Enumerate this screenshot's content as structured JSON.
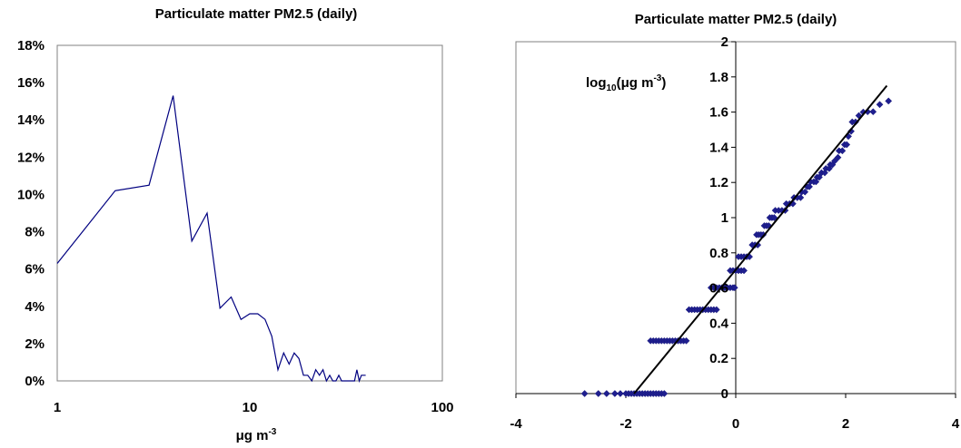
{
  "chart_data": [
    {
      "type": "line",
      "title": "Particulate matter PM2.5 (daily)",
      "xlabel": "μg m",
      "xlabel_sup": "-3",
      "ylabel": "",
      "x_scale": "log",
      "xlim": [
        1,
        100
      ],
      "ylim": [
        0,
        18
      ],
      "x_ticks": [
        1,
        10,
        100
      ],
      "x_tick_labels": [
        "1",
        "10",
        "100"
      ],
      "y_ticks": [
        0,
        2,
        4,
        6,
        8,
        10,
        12,
        14,
        16,
        18
      ],
      "y_tick_labels": [
        "0%",
        "2%",
        "4%",
        "6%",
        "8%",
        "10%",
        "12%",
        "14%",
        "16%",
        "18%"
      ],
      "grid": false,
      "series": [
        {
          "color": "#000080",
          "x": [
            1,
            2,
            3,
            4,
            5,
            6,
            7,
            8,
            9,
            10,
            11,
            12,
            13,
            14,
            15,
            16,
            17,
            18,
            19,
            20,
            21,
            22,
            23,
            24,
            25,
            26,
            27,
            28,
            29,
            30,
            31,
            32,
            33,
            34,
            35,
            36,
            37,
            38,
            39,
            40
          ],
          "values": [
            6.3,
            10.2,
            10.5,
            15.3,
            7.5,
            9.0,
            3.9,
            4.5,
            3.3,
            3.6,
            3.6,
            3.3,
            2.4,
            0.6,
            1.5,
            0.9,
            1.5,
            1.2,
            0.3,
            0.3,
            0.0,
            0.6,
            0.3,
            0.6,
            0.0,
            0.3,
            0.0,
            0.0,
            0.3,
            0.0,
            0.0,
            0.0,
            0.0,
            0.0,
            0.0,
            0.6,
            0.0,
            0.3,
            0.3,
            0.3
          ]
        }
      ]
    },
    {
      "type": "scatter",
      "title": "Particulate matter PM2.5 (daily)",
      "ylabel": "log",
      "ylabel_sub": "10",
      "ylabel_mid": "(μg m",
      "ylabel_sup": "-3",
      "ylabel_end": ")",
      "xlabel": "",
      "xlim": [
        -4,
        4
      ],
      "ylim": [
        0,
        2
      ],
      "x_ticks": [
        -4,
        -2,
        0,
        2,
        4
      ],
      "x_tick_labels": [
        "-4",
        "-2",
        "0",
        "2",
        "4"
      ],
      "y_ticks": [
        0,
        0.2,
        0.4,
        0.6,
        0.8,
        1,
        1.2,
        1.4,
        1.6,
        1.8,
        2
      ],
      "y_tick_labels": [
        "0",
        "0.2",
        "0.4",
        "0.6",
        "0.8",
        "1",
        "1.2",
        "1.4",
        "1.6",
        "1.8",
        "2"
      ],
      "grid": false,
      "marker_color": "#1F1F8F",
      "points": [
        [
          -2.75,
          0
        ],
        [
          -2.5,
          0
        ],
        [
          -2.35,
          0
        ],
        [
          -2.2,
          0
        ],
        [
          -2.1,
          0
        ],
        [
          -2.0,
          0
        ],
        [
          -1.95,
          0
        ],
        [
          -1.9,
          0
        ],
        [
          -1.85,
          0
        ],
        [
          -1.8,
          0
        ],
        [
          -1.75,
          0
        ],
        [
          -1.7,
          0
        ],
        [
          -1.65,
          0
        ],
        [
          -1.6,
          0
        ],
        [
          -1.55,
          0
        ],
        [
          -1.5,
          0
        ],
        [
          -1.45,
          0
        ],
        [
          -1.4,
          0
        ],
        [
          -1.35,
          0
        ],
        [
          -1.3,
          0
        ],
        [
          -1.55,
          0.3
        ],
        [
          -1.5,
          0.3
        ],
        [
          -1.45,
          0.3
        ],
        [
          -1.4,
          0.3
        ],
        [
          -1.35,
          0.3
        ],
        [
          -1.3,
          0.3
        ],
        [
          -1.25,
          0.3
        ],
        [
          -1.2,
          0.3
        ],
        [
          -1.15,
          0.3
        ],
        [
          -1.1,
          0.3
        ],
        [
          -1.05,
          0.3
        ],
        [
          -1.0,
          0.3
        ],
        [
          -0.95,
          0.3
        ],
        [
          -0.9,
          0.3
        ],
        [
          -0.85,
          0.477
        ],
        [
          -0.8,
          0.477
        ],
        [
          -0.75,
          0.477
        ],
        [
          -0.7,
          0.477
        ],
        [
          -0.65,
          0.477
        ],
        [
          -0.6,
          0.477
        ],
        [
          -0.55,
          0.477
        ],
        [
          -0.5,
          0.477
        ],
        [
          -0.45,
          0.477
        ],
        [
          -0.4,
          0.477
        ],
        [
          -0.35,
          0.477
        ],
        [
          -0.45,
          0.602
        ],
        [
          -0.4,
          0.602
        ],
        [
          -0.35,
          0.602
        ],
        [
          -0.3,
          0.602
        ],
        [
          -0.25,
          0.602
        ],
        [
          -0.2,
          0.602
        ],
        [
          -0.15,
          0.602
        ],
        [
          -0.1,
          0.602
        ],
        [
          -0.05,
          0.602
        ],
        [
          -0.02,
          0.602
        ],
        [
          -0.1,
          0.699
        ],
        [
          -0.05,
          0.699
        ],
        [
          0.0,
          0.699
        ],
        [
          0.05,
          0.699
        ],
        [
          0.1,
          0.699
        ],
        [
          0.15,
          0.699
        ],
        [
          0.05,
          0.778
        ],
        [
          0.1,
          0.778
        ],
        [
          0.15,
          0.778
        ],
        [
          0.2,
          0.778
        ],
        [
          0.25,
          0.778
        ],
        [
          0.3,
          0.845
        ],
        [
          0.35,
          0.845
        ],
        [
          0.4,
          0.845
        ],
        [
          0.38,
          0.903
        ],
        [
          0.42,
          0.903
        ],
        [
          0.46,
          0.903
        ],
        [
          0.5,
          0.903
        ],
        [
          0.52,
          0.954
        ],
        [
          0.56,
          0.954
        ],
        [
          0.6,
          0.954
        ],
        [
          0.62,
          1.0
        ],
        [
          0.66,
          1.0
        ],
        [
          0.7,
          1.0
        ],
        [
          0.72,
          1.041
        ],
        [
          0.78,
          1.041
        ],
        [
          0.84,
          1.041
        ],
        [
          0.9,
          1.041
        ],
        [
          0.92,
          1.079
        ],
        [
          0.98,
          1.079
        ],
        [
          1.04,
          1.079
        ],
        [
          1.06,
          1.114
        ],
        [
          1.12,
          1.114
        ],
        [
          1.18,
          1.114
        ],
        [
          1.2,
          1.146
        ],
        [
          1.26,
          1.146
        ],
        [
          1.3,
          1.176
        ],
        [
          1.34,
          1.176
        ],
        [
          1.36,
          1.204
        ],
        [
          1.42,
          1.204
        ],
        [
          1.46,
          1.204
        ],
        [
          1.48,
          1.23
        ],
        [
          1.52,
          1.23
        ],
        [
          1.56,
          1.255
        ],
        [
          1.62,
          1.255
        ],
        [
          1.64,
          1.279
        ],
        [
          1.7,
          1.279
        ],
        [
          1.72,
          1.301
        ],
        [
          1.76,
          1.301
        ],
        [
          1.8,
          1.322
        ],
        [
          1.86,
          1.342
        ],
        [
          1.88,
          1.38
        ],
        [
          1.94,
          1.38
        ],
        [
          1.98,
          1.415
        ],
        [
          2.02,
          1.415
        ],
        [
          2.05,
          1.462
        ],
        [
          2.1,
          1.491
        ],
        [
          2.12,
          1.544
        ],
        [
          2.18,
          1.544
        ],
        [
          2.24,
          1.58
        ],
        [
          2.32,
          1.6
        ],
        [
          2.4,
          1.602
        ],
        [
          2.5,
          1.602
        ],
        [
          2.62,
          1.643
        ],
        [
          2.78,
          1.663
        ]
      ],
      "trend_line": [
        [
          -1.85,
          0
        ],
        [
          2.75,
          1.75
        ]
      ]
    }
  ]
}
